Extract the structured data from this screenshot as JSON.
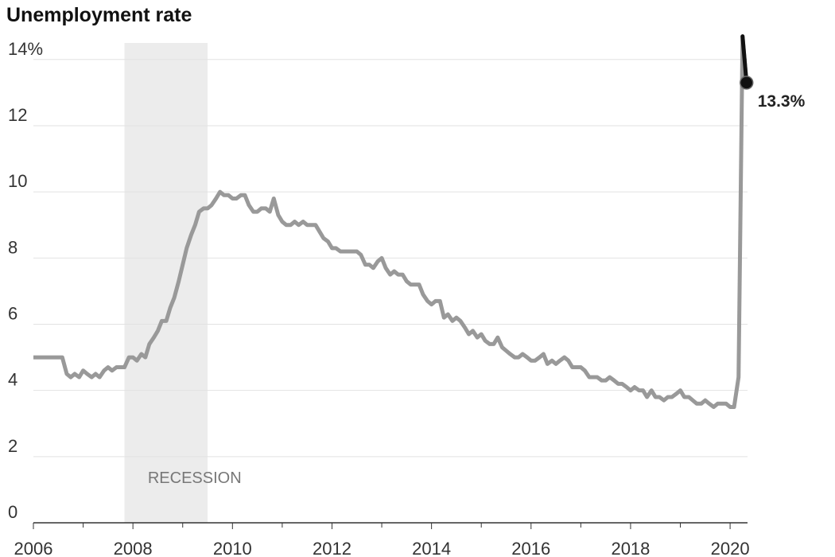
{
  "chart_data": {
    "type": "line",
    "title": "Unemployment rate",
    "x": [
      2006,
      2006.08,
      2006.17,
      2006.25,
      2006.33,
      2006.42,
      2006.5,
      2006.58,
      2006.67,
      2006.75,
      2006.83,
      2006.92,
      2007,
      2007.08,
      2007.17,
      2007.25,
      2007.33,
      2007.42,
      2007.5,
      2007.58,
      2007.67,
      2007.75,
      2007.83,
      2007.92,
      2008,
      2008.08,
      2008.17,
      2008.25,
      2008.33,
      2008.42,
      2008.5,
      2008.58,
      2008.67,
      2008.75,
      2008.83,
      2008.92,
      2009,
      2009.08,
      2009.17,
      2009.25,
      2009.33,
      2009.42,
      2009.5,
      2009.58,
      2009.67,
      2009.75,
      2009.83,
      2009.92,
      2010,
      2010.08,
      2010.17,
      2010.25,
      2010.33,
      2010.42,
      2010.5,
      2010.58,
      2010.67,
      2010.75,
      2010.83,
      2010.92,
      2011,
      2011.08,
      2011.17,
      2011.25,
      2011.33,
      2011.42,
      2011.5,
      2011.58,
      2011.67,
      2011.75,
      2011.83,
      2011.92,
      2012,
      2012.08,
      2012.17,
      2012.25,
      2012.33,
      2012.42,
      2012.5,
      2012.58,
      2012.67,
      2012.75,
      2012.83,
      2012.92,
      2013,
      2013.08,
      2013.17,
      2013.25,
      2013.33,
      2013.42,
      2013.5,
      2013.58,
      2013.67,
      2013.75,
      2013.83,
      2013.92,
      2014,
      2014.08,
      2014.17,
      2014.25,
      2014.33,
      2014.42,
      2014.5,
      2014.58,
      2014.67,
      2014.75,
      2014.83,
      2014.92,
      2015,
      2015.08,
      2015.17,
      2015.25,
      2015.33,
      2015.42,
      2015.5,
      2015.58,
      2015.67,
      2015.75,
      2015.83,
      2015.92,
      2016,
      2016.08,
      2016.17,
      2016.25,
      2016.33,
      2016.42,
      2016.5,
      2016.58,
      2016.67,
      2016.75,
      2016.83,
      2016.92,
      2017,
      2017.08,
      2017.17,
      2017.25,
      2017.33,
      2017.42,
      2017.5,
      2017.58,
      2017.67,
      2017.75,
      2017.83,
      2017.92,
      2018,
      2018.08,
      2018.17,
      2018.25,
      2018.33,
      2018.42,
      2018.5,
      2018.58,
      2018.67,
      2018.75,
      2018.83,
      2018.92,
      2019,
      2019.08,
      2019.17,
      2019.25,
      2019.33,
      2019.42,
      2019.5,
      2019.58,
      2019.67,
      2019.75,
      2019.83,
      2019.92,
      2020,
      2020.08,
      2020.17,
      2020.25,
      2020.33
    ],
    "values": [
      5,
      5,
      5,
      5,
      5,
      5,
      5,
      5,
      4.5,
      4.4,
      4.5,
      4.4,
      4.6,
      4.5,
      4.4,
      4.5,
      4.4,
      4.6,
      4.7,
      4.6,
      4.7,
      4.7,
      4.7,
      5.0,
      5.0,
      4.9,
      5.1,
      5.0,
      5.4,
      5.6,
      5.8,
      6.1,
      6.1,
      6.5,
      6.8,
      7.3,
      7.8,
      8.3,
      8.7,
      9.0,
      9.4,
      9.5,
      9.5,
      9.6,
      9.8,
      10.0,
      9.9,
      9.9,
      9.8,
      9.8,
      9.9,
      9.9,
      9.6,
      9.4,
      9.4,
      9.5,
      9.5,
      9.4,
      9.8,
      9.3,
      9.1,
      9.0,
      9.0,
      9.1,
      9.0,
      9.1,
      9.0,
      9.0,
      9.0,
      8.8,
      8.6,
      8.5,
      8.3,
      8.3,
      8.2,
      8.2,
      8.2,
      8.2,
      8.2,
      8.1,
      7.8,
      7.8,
      7.7,
      7.9,
      8.0,
      7.7,
      7.5,
      7.6,
      7.5,
      7.5,
      7.3,
      7.2,
      7.2,
      7.2,
      6.9,
      6.7,
      6.6,
      6.7,
      6.7,
      6.2,
      6.3,
      6.1,
      6.2,
      6.1,
      5.9,
      5.7,
      5.8,
      5.6,
      5.7,
      5.5,
      5.4,
      5.4,
      5.6,
      5.3,
      5.2,
      5.1,
      5.0,
      5.0,
      5.1,
      5.0,
      4.9,
      4.9,
      5.0,
      5.1,
      4.8,
      4.9,
      4.8,
      4.9,
      5.0,
      4.9,
      4.7,
      4.7,
      4.7,
      4.6,
      4.4,
      4.4,
      4.4,
      4.3,
      4.3,
      4.4,
      4.3,
      4.2,
      4.2,
      4.1,
      4.0,
      4.1,
      4.0,
      4.0,
      3.8,
      4.0,
      3.8,
      3.8,
      3.7,
      3.8,
      3.8,
      3.9,
      4.0,
      3.8,
      3.8,
      3.7,
      3.6,
      3.6,
      3.7,
      3.6,
      3.5,
      3.6,
      3.6,
      3.6,
      3.5,
      3.5,
      4.4,
      14.7,
      13.3
    ],
    "value_labels": [
      null,
      null,
      null,
      null,
      null,
      null,
      null,
      null,
      null,
      null,
      null,
      null,
      null,
      null,
      null,
      null,
      null,
      null,
      null,
      null,
      null,
      null,
      null,
      null,
      null,
      null,
      null,
      null,
      null,
      null,
      null,
      null,
      null,
      null,
      null,
      null,
      null,
      null,
      null,
      null,
      null,
      null,
      null,
      null,
      null,
      null,
      null,
      null,
      null,
      null,
      null,
      null,
      null,
      null,
      null,
      null,
      null,
      null,
      null,
      null,
      null,
      null,
      null,
      null,
      null,
      null,
      null,
      null,
      null,
      null,
      null,
      null,
      null,
      null,
      null,
      null,
      null,
      null,
      null,
      null,
      null,
      null,
      null,
      null,
      null,
      null,
      null,
      null,
      null,
      null,
      null,
      null,
      null,
      null,
      null,
      null,
      null,
      null,
      null,
      null,
      null,
      null,
      null,
      null,
      null,
      null,
      null,
      null,
      null,
      null,
      null,
      null,
      null,
      null,
      null,
      null,
      null,
      null,
      null,
      null,
      null,
      null,
      null,
      null,
      null,
      null,
      null,
      null,
      null,
      null,
      null,
      null,
      null,
      null,
      null,
      null,
      null,
      null,
      null,
      null,
      null,
      null,
      null,
      null,
      null,
      null,
      null,
      null,
      null,
      null,
      null,
      null,
      null,
      null,
      null,
      null,
      null,
      null,
      null,
      null,
      null,
      null,
      null,
      null,
      null,
      null,
      null,
      null,
      null,
      null,
      null,
      null,
      "13.3%"
    ],
    "color": "#999999",
    "highlight_color": "#111111",
    "shaded_regions": [
      {
        "label": "RECESSION",
        "x": [
          2007.83,
          2009.5
        ],
        "color": "#ececec"
      }
    ],
    "xlim": [
      2006,
      2020.35
    ],
    "xticks": [
      2006,
      2008,
      2010,
      2012,
      2014,
      2016,
      2018,
      2020
    ],
    "xminorticks": [
      2007,
      2009,
      2011,
      2013,
      2015,
      2017,
      2019
    ],
    "ylim": [
      0,
      14.5
    ],
    "yticks": [
      0,
      2,
      4,
      6,
      8,
      10,
      12,
      {
        "value": 14,
        "label": "14%"
      }
    ],
    "grid": true
  }
}
